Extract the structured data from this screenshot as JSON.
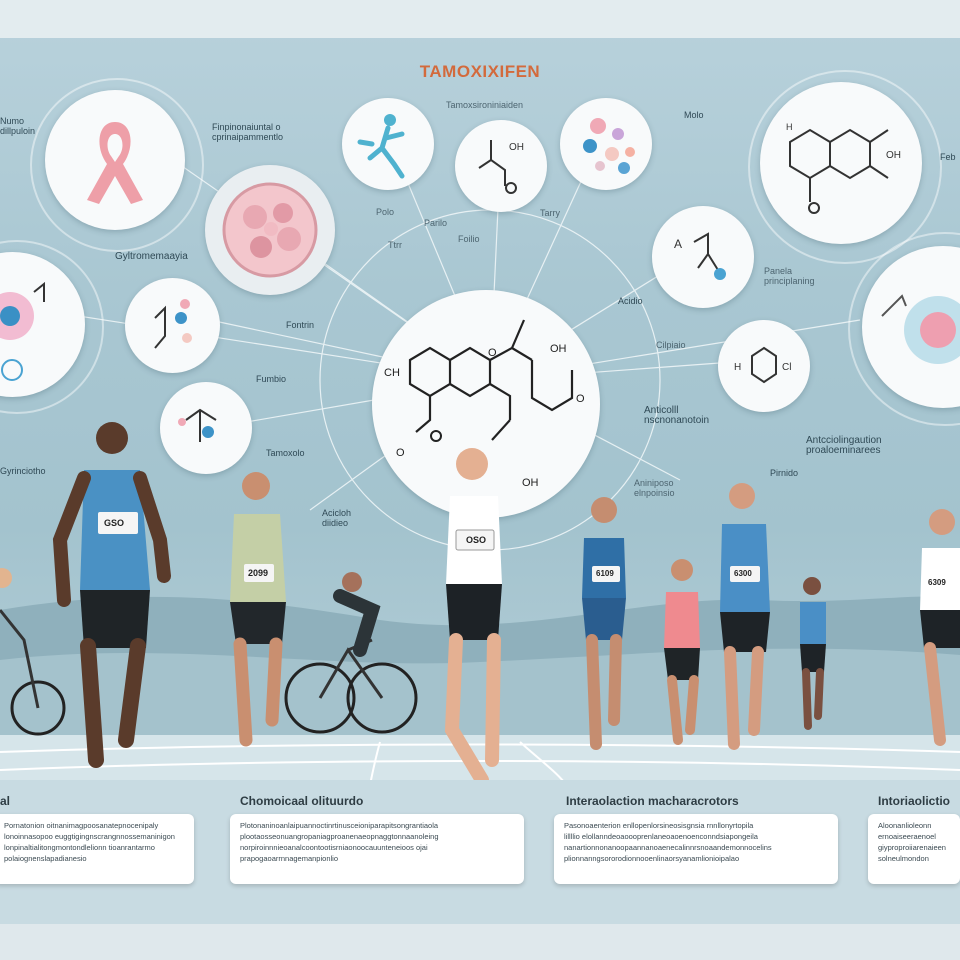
{
  "title": "TAMOXIXIFEN",
  "labels": {
    "top_small": "Tamoxsironiniaiden",
    "upper_left": "Finpinonaiuntal o\ncprinaipammentlo",
    "gyro": "Gyltromemaayia",
    "molo": "Molo",
    "feb": "Feb",
    "pan": "Panela\nprinciplaning",
    "pairs1": "Polo",
    "pairs2": "Parilo",
    "pairs3": "Foilio",
    "tamox_mid": "Tamoxolo",
    "fontrin": "Fontrin",
    "fumbio": "Fumbio",
    "acidio": "Acidio",
    "anticol": "Anticolll\nnscnonanotoin",
    "antilong": "Antcciolingaution\nproaloeminarees",
    "cilpiaio": "Cilpiaio",
    "aninposo": "Aniniposo\nelnpoinsio",
    "pirnido": "Pirnido",
    "acicloh": "Acicloh\ndiidieo",
    "gpyrincilo": "Gyrinciotho",
    "numo": "Numo\ndillpuloin",
    "ttr": "Ttrr",
    "tarry": "Tarry"
  },
  "bibs": [
    "GSO",
    "2099",
    "OSO",
    "6109",
    "6300",
    "6309"
  ],
  "sections": [
    {
      "heading": "al",
      "text": "Pornatonion oitnanimagpoosanatepnocenipaly\nlonoinnasopoo euggtigingnscrangnnossemaninigon\nlonpinaltialitongmontondlelionn tioanrantarmo\npolaiognenslapadianesio"
    },
    {
      "heading": "Chomoicaal olituurdo",
      "text": "Plotonaninoanlaipuannoctinrtinusceioniparapitsongrantiaola\nplootaosseonuangropaniagproanenaeopnaggtonnaanoleing\nnorpiroinnnieoanalcoontootisrniaonoocauunteneioos ojai\nprapogaoarrnnagemanpionlio"
    },
    {
      "heading": "Interaolaction macharacrotors",
      "text": "Pasonoaenterion enllopenlorsineosisgnsia rnnllonyrtopila\nlillllio elollanndeoaoooprenlaneoaoenoenconndsiapongeila\nnanartionnonanoopaannanoaenecalinnrsnoaandemonnocelins\nplionnanngsororodionnooenlinaorsyanamlionioipalao"
    },
    {
      "heading": "Intoriaolictio",
      "text": "Aloonanlioleonn\nernoaiseeraenoel\ngiyproproiiarenaieen\nsolneulmondon"
    }
  ],
  "colors": {
    "title": "#d36a3c",
    "ribbon": "#ee9fa8",
    "track": "#9dbdc8",
    "sky": "#a9c7d2"
  }
}
